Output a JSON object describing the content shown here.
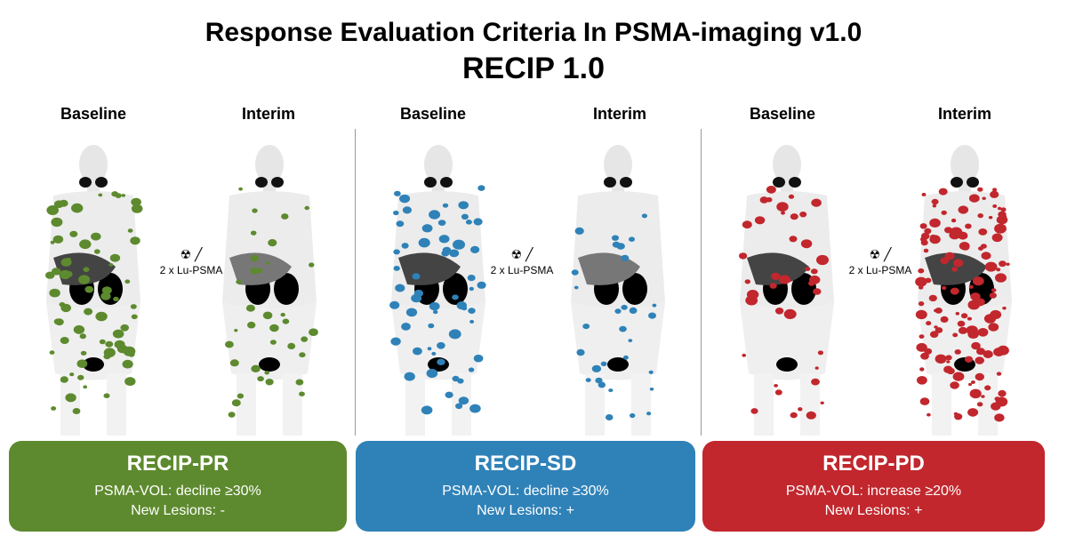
{
  "title": "Response Evaluation Criteria In PSMA-imaging v1.0",
  "subtitle": "RECIP 1.0",
  "groups": [
    {
      "baseline_label": "Baseline",
      "interim_label": "Interim",
      "treatment": "2 x Lu-PSMA",
      "category": "RECIP-PR",
      "line1": "PSMA-VOL: decline ≥30%",
      "line2": "New Lesions: -",
      "color": "#5d8a2e"
    },
    {
      "baseline_label": "Baseline",
      "interim_label": "Interim",
      "treatment": "2 x Lu-PSMA",
      "category": "RECIP-SD",
      "line1": "PSMA-VOL: decline ≥30%",
      "line2": "New Lesions: +",
      "color": "#2f82b8"
    },
    {
      "baseline_label": "Baseline",
      "interim_label": "Interim",
      "treatment": "2 x Lu-PSMA",
      "category": "RECIP-PD",
      "line1": "PSMA-VOL: increase ≥20%",
      "line2": "New Lesions: +",
      "color": "#c1272d"
    }
  ]
}
